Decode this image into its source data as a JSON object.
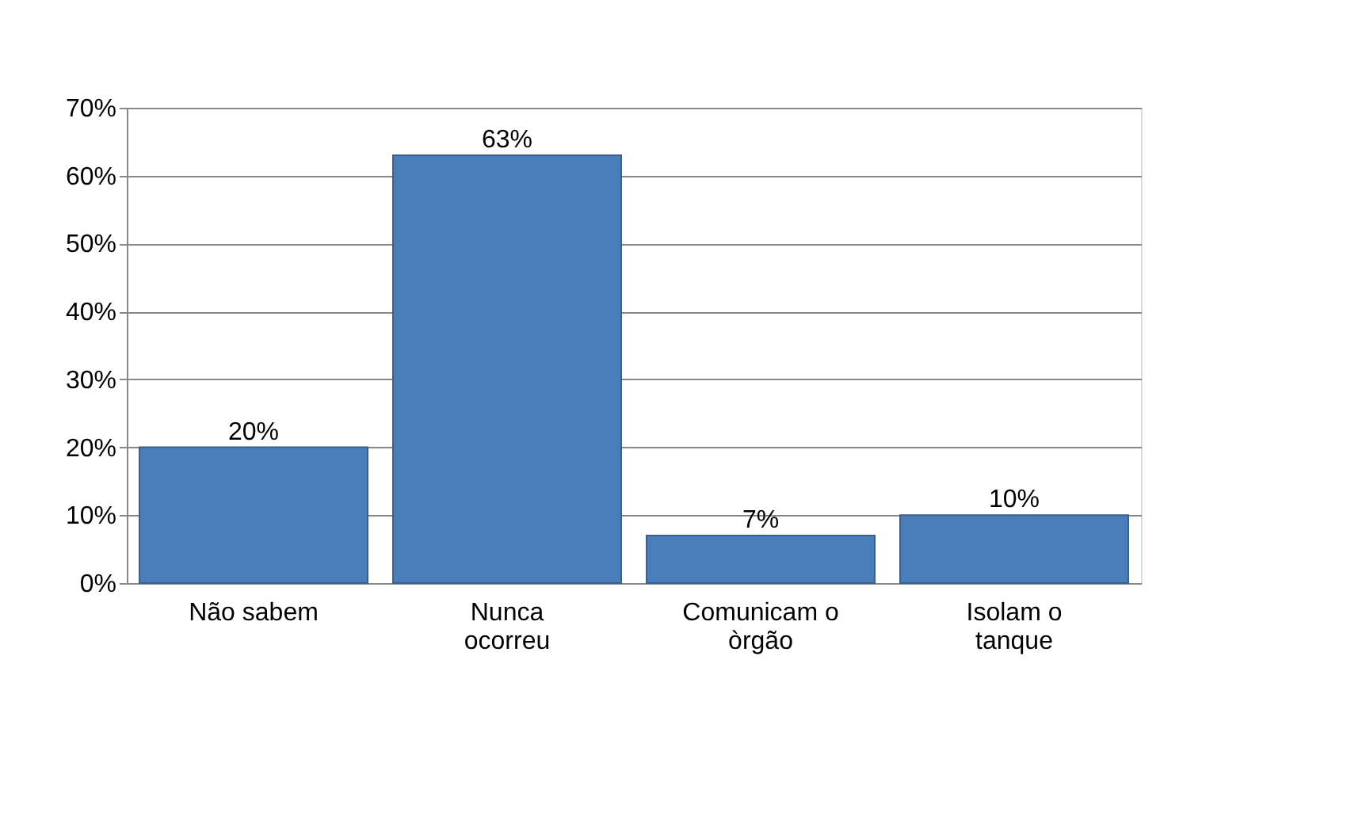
{
  "chart_data": {
    "type": "bar",
    "categories": [
      "Não sabem",
      "Nunca ocorreu",
      "Comunicam o òrgão",
      "Isolam o tanque"
    ],
    "values": [
      20,
      63,
      7,
      10
    ],
    "color": "#4a7ebb",
    "value_labels": [
      "20%",
      "63%",
      "7%",
      "10%"
    ],
    "ylim": [
      0,
      70
    ],
    "yticks": [
      {
        "value": 0,
        "label": "0%"
      },
      {
        "value": 10,
        "label": "10%"
      },
      {
        "value": 20,
        "label": "20%"
      },
      {
        "value": 30,
        "label": "30%"
      },
      {
        "value": 40,
        "label": "40%"
      },
      {
        "value": 50,
        "label": "50%"
      },
      {
        "value": 60,
        "label": "60%"
      },
      {
        "value": 70,
        "label": "70%"
      }
    ],
    "grid": "y"
  }
}
